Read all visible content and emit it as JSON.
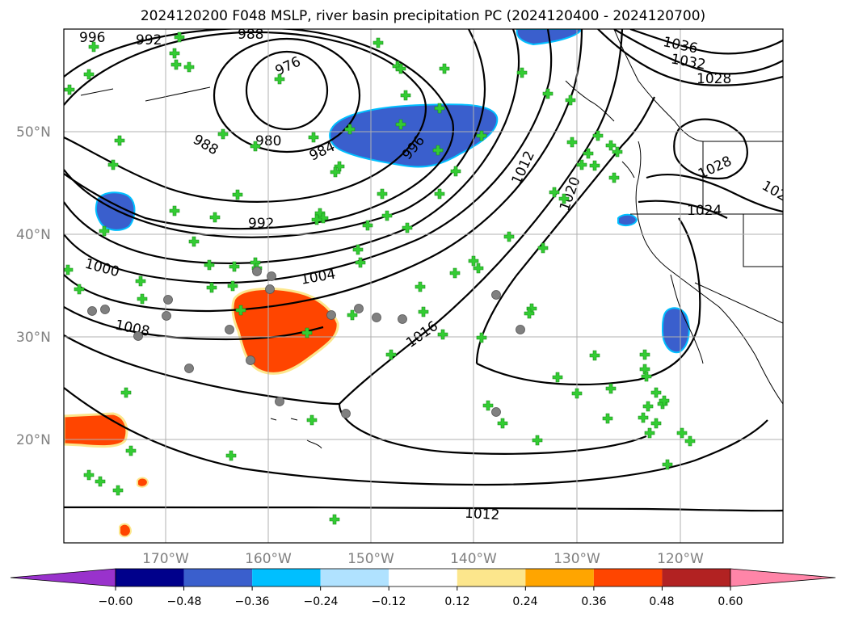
{
  "title": "2024120200 F048 MSLP, river basin precipitation PC (2024120400 - 2024120700)",
  "map": {
    "lat_labels": [
      "50°N",
      "40°N",
      "30°N",
      "20°N"
    ],
    "lon_labels": [
      "170°W",
      "160°W",
      "150°W",
      "140°W",
      "130°W",
      "120°W"
    ],
    "isobar_labels": [
      "996",
      "992",
      "988",
      "976",
      "988",
      "980",
      "984",
      "996",
      "992",
      "1000",
      "1004",
      "1008",
      "1016",
      "1012",
      "1020",
      "1012",
      "1036",
      "1032",
      "1028",
      "1028",
      "1024",
      "102"
    ],
    "line_color": "#000000",
    "grid_color": "#b0b0b0",
    "station_plus_color": "#33cc33",
    "station_circle_color": "#808080"
  },
  "colorbar": {
    "ticks": [
      "−0.60",
      "−0.48",
      "−0.36",
      "−0.24",
      "−0.12",
      "0.12",
      "0.24",
      "0.36",
      "0.48",
      "0.60"
    ],
    "colors": [
      "#9932cc",
      "#00008b",
      "#3a5fcd",
      "#00bfff",
      "#b0e2ff",
      "#ffffff",
      "#fce68c",
      "#ffa500",
      "#ff4500",
      "#b22222",
      "#ff85a8"
    ]
  }
}
